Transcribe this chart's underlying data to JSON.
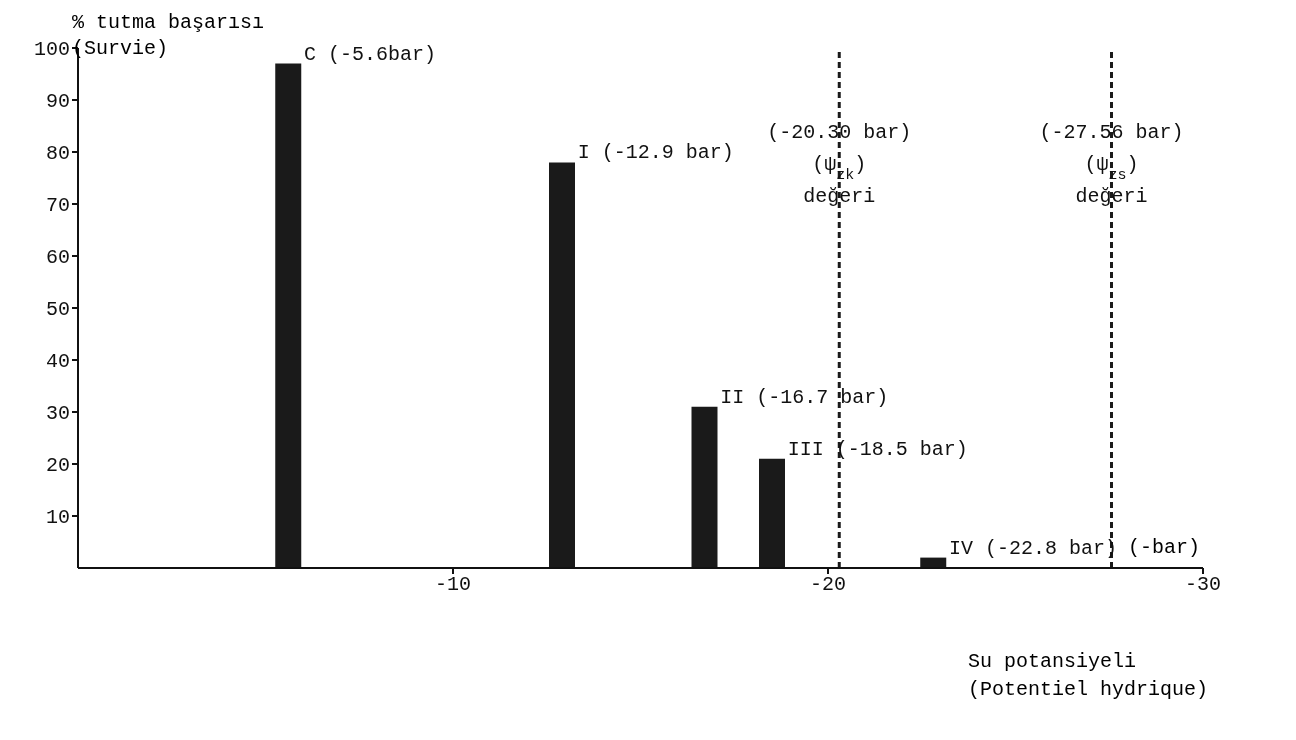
{
  "chart_data": {
    "type": "bar",
    "ylabel": "% tutma başarısı\n(Survie)",
    "xlabel": "Su potansiyeli\n(Potentiel hydrique)",
    "x": [
      -5.6,
      -12.9,
      -16.7,
      -18.5,
      -22.8
    ],
    "values": [
      97,
      78,
      31,
      21,
      2
    ],
    "color": "#1a1a1a",
    "xlim": [
      0,
      -30
    ],
    "xticks": [
      -10,
      -20,
      -30
    ],
    "ylim": [
      0,
      100
    ],
    "yticks": [
      10,
      20,
      30,
      40,
      50,
      60,
      70,
      80,
      90,
      100
    ],
    "grid": false,
    "legend": false,
    "ref_lines": [
      {
        "axis": "x",
        "value": -20.3,
        "label": "(-20.30 bar)\n(ψ$_{zk}$)\ndeğeri",
        "color": "#1a1a1a",
        "line_style": "dashed"
      },
      {
        "axis": "x",
        "value": -27.56,
        "label": "(-27.56 bar)\n(ψ$_{zs}$)\ndeğeri",
        "color": "#1a1a1a",
        "line_style": "dashed"
      }
    ],
    "annotations": [
      {
        "text": "C (-5.6bar)",
        "x": -5.6,
        "y": 97
      },
      {
        "text": "I (-12.9 bar)",
        "x": -12.9,
        "y": 78
      },
      {
        "text": "II (-16.7 bar)",
        "x": -16.7,
        "y": 31
      },
      {
        "text": "III (-18.5 bar)",
        "x": -18.5,
        "y": 21
      },
      {
        "text": "IV (-22.8 bar)",
        "x": -22.8,
        "y": 2
      },
      "(-bar)"
    ]
  }
}
